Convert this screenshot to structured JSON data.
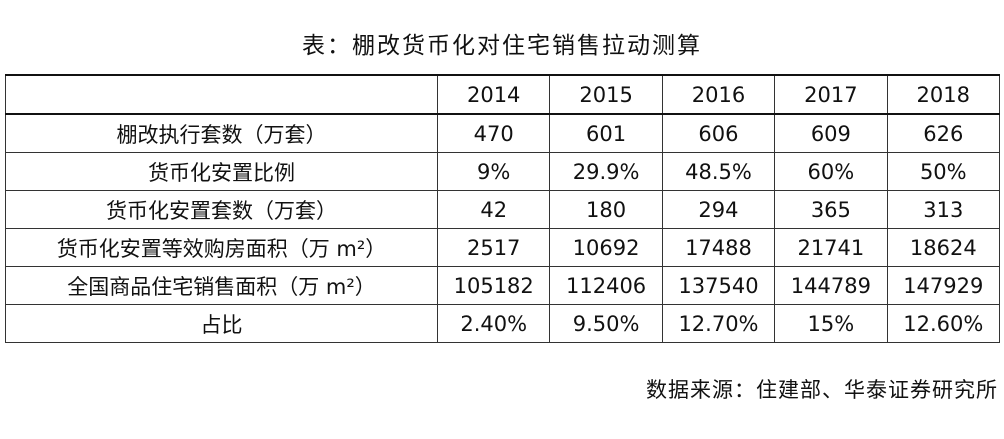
{
  "title": "表：棚改货币化对住宅销售拉动测算",
  "table": {
    "columns": [
      "2014",
      "2015",
      "2016",
      "2017",
      "2018"
    ],
    "rows": [
      {
        "label": "棚改执行套数（万套）",
        "cells": [
          "470",
          "601",
          "606",
          "609",
          "626"
        ]
      },
      {
        "label": "货币化安置比例",
        "cells": [
          "9%",
          "29.9%",
          "48.5%",
          "60%",
          "50%"
        ]
      },
      {
        "label": "货币化安置套数（万套）",
        "cells": [
          "42",
          "180",
          "294",
          "365",
          "313"
        ]
      },
      {
        "label": "货币化安置等效购房面积（万 m²）",
        "cells": [
          "2517",
          "10692",
          "17488",
          "21741",
          "18624"
        ]
      },
      {
        "label": "全国商品住宅销售面积（万 m²）",
        "cells": [
          "105182",
          "112406",
          "137540",
          "144789",
          "147929"
        ]
      },
      {
        "label": "占比",
        "cells": [
          "2.40%",
          "9.50%",
          "12.70%",
          "15%",
          "12.60%"
        ]
      }
    ]
  },
  "source": "数据来源：住建部、华泰证券研究所"
}
